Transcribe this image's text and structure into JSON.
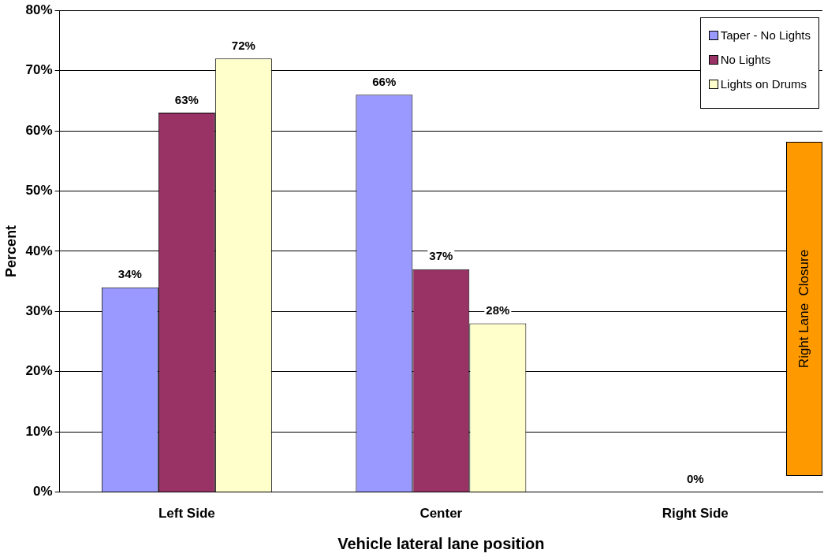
{
  "chart_data": {
    "type": "bar",
    "xlabel": "Vehicle lateral lane position",
    "ylabel": "Percent",
    "categories": [
      "Left Side",
      "Center",
      "Right Side"
    ],
    "series": [
      {
        "name": "Taper - No Lights",
        "color": "#9999ff",
        "values": [
          34,
          66,
          null
        ],
        "value_labels": [
          "34%",
          "66%",
          null
        ]
      },
      {
        "name": "No Lights",
        "color": "#993366",
        "values": [
          63,
          37,
          0
        ],
        "value_labels": [
          "63%",
          "37%",
          "0%"
        ]
      },
      {
        "name": "Lights on Drums",
        "color": "#ffffcc",
        "values": [
          72,
          28,
          null
        ],
        "value_labels": [
          "72%",
          "28%",
          null
        ]
      }
    ],
    "ylim": [
      0,
      80
    ],
    "yticks": [
      {
        "value": 0,
        "label": "0%"
      },
      {
        "value": 10,
        "label": "10%"
      },
      {
        "value": 20,
        "label": "20%"
      },
      {
        "value": 30,
        "label": "30%"
      },
      {
        "value": 40,
        "label": "40%"
      },
      {
        "value": 50,
        "label": "50%"
      },
      {
        "value": 60,
        "label": "60%"
      },
      {
        "value": 70,
        "label": "70%"
      },
      {
        "value": 80,
        "label": "80%"
      }
    ],
    "grid": "y",
    "legend": "top right",
    "annotations": [
      "Right Lane  Closure"
    ]
  }
}
